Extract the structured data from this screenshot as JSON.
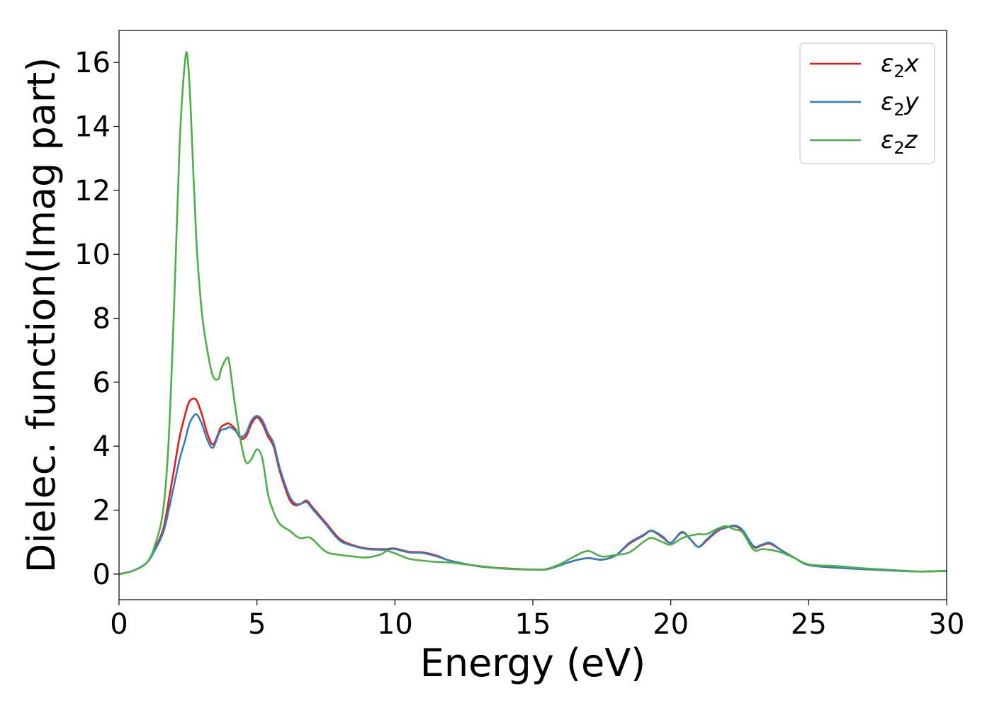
{
  "chart_data": {
    "type": "line",
    "title": "",
    "xlabel": "Energy (eV)",
    "ylabel": "Dielec. function(Imag part)",
    "xlim": [
      0,
      30
    ],
    "ylim": [
      -0.8,
      17
    ],
    "xticks": [
      0,
      5,
      10,
      15,
      20,
      25,
      30
    ],
    "yticks": [
      0,
      2,
      4,
      6,
      8,
      10,
      12,
      14,
      16
    ],
    "grid": false,
    "legend_position": "top-right",
    "x": [
      0,
      0.5,
      1.0,
      1.3,
      1.6,
      1.8,
      2.0,
      2.2,
      2.4,
      2.5,
      2.6,
      2.8,
      3.0,
      3.2,
      3.4,
      3.6,
      3.7,
      3.9,
      4.0,
      4.2,
      4.4,
      4.6,
      4.8,
      5.0,
      5.2,
      5.4,
      5.6,
      5.8,
      6.0,
      6.2,
      6.4,
      6.6,
      6.8,
      7.0,
      7.5,
      8.0,
      8.5,
      9.0,
      9.5,
      9.7,
      10.0,
      10.5,
      11.0,
      11.5,
      12.0,
      13.0,
      14.0,
      15.0,
      15.5,
      16.0,
      16.5,
      17.0,
      17.5,
      18.0,
      18.5,
      19.0,
      19.3,
      19.7,
      20.0,
      20.4,
      20.7,
      21.0,
      21.3,
      21.7,
      22.0,
      22.3,
      22.6,
      23.0,
      23.3,
      23.6,
      24.0,
      24.5,
      25.0,
      26.0,
      27.0,
      28.0,
      29.0,
      30.0
    ],
    "series": [
      {
        "name": "x",
        "color": "#e41a1c",
        "values": [
          0,
          0.1,
          0.35,
          0.8,
          1.4,
          2.3,
          3.3,
          4.3,
          5.0,
          5.3,
          5.45,
          5.45,
          5.0,
          4.4,
          4.05,
          4.4,
          4.6,
          4.7,
          4.7,
          4.55,
          4.25,
          4.3,
          4.7,
          4.9,
          4.7,
          4.3,
          4.0,
          3.3,
          2.75,
          2.3,
          2.15,
          2.2,
          2.3,
          2.1,
          1.6,
          1.1,
          0.9,
          0.8,
          0.78,
          0.78,
          0.8,
          0.7,
          0.68,
          0.58,
          0.42,
          0.25,
          0.18,
          0.14,
          0.15,
          0.28,
          0.42,
          0.5,
          0.45,
          0.58,
          0.95,
          1.2,
          1.35,
          1.15,
          0.98,
          1.3,
          1.1,
          0.85,
          1.05,
          1.35,
          1.45,
          1.5,
          1.35,
          0.85,
          0.9,
          0.95,
          0.75,
          0.5,
          0.3,
          0.22,
          0.16,
          0.12,
          0.08,
          0.1
        ]
      },
      {
        "name": "y",
        "color": "#377eb8",
        "values": [
          0,
          0.1,
          0.35,
          0.75,
          1.3,
          2.0,
          2.8,
          3.6,
          4.2,
          4.55,
          4.8,
          5.0,
          4.7,
          4.2,
          3.95,
          4.35,
          4.5,
          4.55,
          4.6,
          4.5,
          4.3,
          4.4,
          4.8,
          4.95,
          4.8,
          4.4,
          4.1,
          3.4,
          2.85,
          2.4,
          2.2,
          2.2,
          2.25,
          2.05,
          1.55,
          1.05,
          0.88,
          0.78,
          0.76,
          0.76,
          0.78,
          0.68,
          0.66,
          0.56,
          0.42,
          0.25,
          0.17,
          0.14,
          0.15,
          0.28,
          0.42,
          0.5,
          0.45,
          0.58,
          0.98,
          1.22,
          1.36,
          1.18,
          0.98,
          1.32,
          1.1,
          0.85,
          1.08,
          1.38,
          1.45,
          1.52,
          1.38,
          0.88,
          0.92,
          0.98,
          0.75,
          0.5,
          0.28,
          0.2,
          0.15,
          0.11,
          0.08,
          0.1
        ]
      },
      {
        "name": "z",
        "color": "#4daf4a",
        "values": [
          0,
          0.1,
          0.35,
          0.9,
          2.0,
          4.2,
          8.5,
          13.5,
          16.1,
          16.0,
          14.5,
          10.5,
          8.2,
          7.0,
          6.2,
          6.1,
          6.4,
          6.75,
          6.6,
          5.3,
          4.2,
          3.5,
          3.6,
          3.9,
          3.6,
          2.5,
          1.95,
          1.6,
          1.45,
          1.35,
          1.2,
          1.12,
          1.15,
          1.1,
          0.7,
          0.6,
          0.55,
          0.52,
          0.62,
          0.72,
          0.65,
          0.48,
          0.42,
          0.38,
          0.36,
          0.26,
          0.17,
          0.14,
          0.16,
          0.32,
          0.55,
          0.72,
          0.55,
          0.6,
          0.68,
          1.0,
          1.13,
          1.0,
          0.92,
          1.12,
          1.2,
          1.25,
          1.25,
          1.42,
          1.5,
          1.4,
          1.3,
          0.76,
          0.78,
          0.76,
          0.68,
          0.5,
          0.3,
          0.25,
          0.18,
          0.13,
          0.08,
          0.1
        ]
      }
    ]
  }
}
